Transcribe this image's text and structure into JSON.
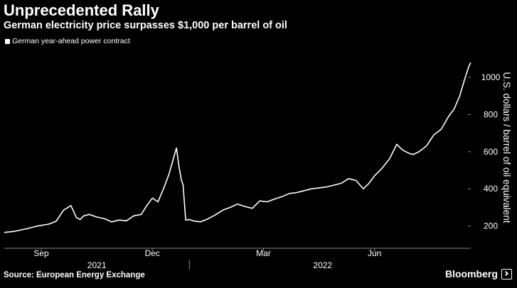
{
  "chart_data": {
    "type": "line",
    "title": "Unprecedented Rally",
    "subtitle": "German electricity price surpasses $1,000 per barrel of oil",
    "legend": [
      "German year-ahead power contract"
    ],
    "ylabel": "U.S. dollars / barrel of oil equivalent",
    "xlabel": "",
    "ylim": [
      80,
      1180
    ],
    "y_ticks": [
      200,
      400,
      600,
      800,
      1000
    ],
    "y_tick_labels": [
      "200",
      "400",
      "600",
      "800",
      "1000"
    ],
    "x_range_month_index": [
      0,
      12.6
    ],
    "x_ticks": [
      {
        "label": "Sep",
        "x": 1
      },
      {
        "label": "Dec",
        "x": 4
      },
      {
        "label": "Mar",
        "x": 7
      },
      {
        "label": "Jun",
        "x": 10
      }
    ],
    "year_labels": [
      {
        "label": "2021",
        "x": 2.5
      },
      {
        "label": "2022",
        "x": 8.6
      }
    ],
    "year_separator_x": 5,
    "series": [
      {
        "name": "German year-ahead power contract",
        "x": [
          0,
          0.3,
          0.6,
          0.9,
          1.2,
          1.4,
          1.6,
          1.8,
          1.95,
          2.05,
          2.15,
          2.3,
          2.5,
          2.7,
          2.9,
          3.1,
          3.3,
          3.5,
          3.7,
          3.85,
          4.0,
          4.15,
          4.3,
          4.45,
          4.55,
          4.65,
          4.72,
          4.78,
          4.83,
          4.9,
          5.0,
          5.1,
          5.3,
          5.5,
          5.7,
          5.9,
          6.1,
          6.3,
          6.5,
          6.7,
          6.9,
          7.1,
          7.3,
          7.5,
          7.7,
          7.9,
          8.1,
          8.3,
          8.5,
          8.7,
          8.9,
          9.1,
          9.3,
          9.5,
          9.7,
          9.85,
          10.0,
          10.2,
          10.4,
          10.6,
          10.75,
          10.85,
          10.95,
          11.05,
          11.2,
          11.4,
          11.6,
          11.8,
          12.0,
          12.15,
          12.3,
          12.45,
          12.55,
          12.6
        ],
        "values": [
          165,
          172,
          185,
          200,
          210,
          225,
          285,
          310,
          245,
          235,
          255,
          262,
          248,
          240,
          222,
          232,
          228,
          255,
          262,
          310,
          350,
          330,
          400,
          480,
          550,
          620,
          520,
          450,
          420,
          232,
          235,
          228,
          222,
          238,
          260,
          285,
          300,
          318,
          305,
          295,
          335,
          330,
          345,
          358,
          375,
          380,
          390,
          400,
          405,
          410,
          420,
          430,
          455,
          445,
          400,
          430,
          470,
          510,
          560,
          640,
          610,
          600,
          590,
          585,
          600,
          630,
          690,
          720,
          790,
          830,
          900,
          1000,
          1060,
          1080
        ]
      }
    ]
  }
}
